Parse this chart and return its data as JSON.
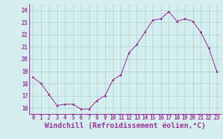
{
  "x": [
    0,
    1,
    2,
    3,
    4,
    5,
    6,
    7,
    8,
    9,
    10,
    11,
    12,
    13,
    14,
    15,
    16,
    17,
    18,
    19,
    20,
    21,
    22,
    23
  ],
  "y": [
    18.5,
    18.0,
    17.1,
    16.2,
    16.3,
    16.3,
    15.9,
    15.9,
    16.6,
    17.0,
    18.3,
    18.7,
    20.5,
    21.2,
    22.2,
    23.2,
    23.3,
    23.9,
    23.1,
    23.3,
    23.1,
    22.2,
    20.9,
    19.0
  ],
  "xlabel": "Windchill (Refroidissement éolien,°C)",
  "ylim": [
    15.5,
    24.5
  ],
  "yticks": [
    16,
    17,
    18,
    19,
    20,
    21,
    22,
    23,
    24
  ],
  "xticks": [
    0,
    1,
    2,
    3,
    4,
    5,
    6,
    7,
    8,
    9,
    10,
    11,
    12,
    13,
    14,
    15,
    16,
    17,
    18,
    19,
    20,
    21,
    22,
    23
  ],
  "line_color": "#993399",
  "marker_color": "#993399",
  "bg_color": "#d5eef0",
  "grid_color": "#aacccc",
  "axis_color": "#993399",
  "tick_fontsize": 5.5,
  "xlabel_fontsize": 7.5
}
